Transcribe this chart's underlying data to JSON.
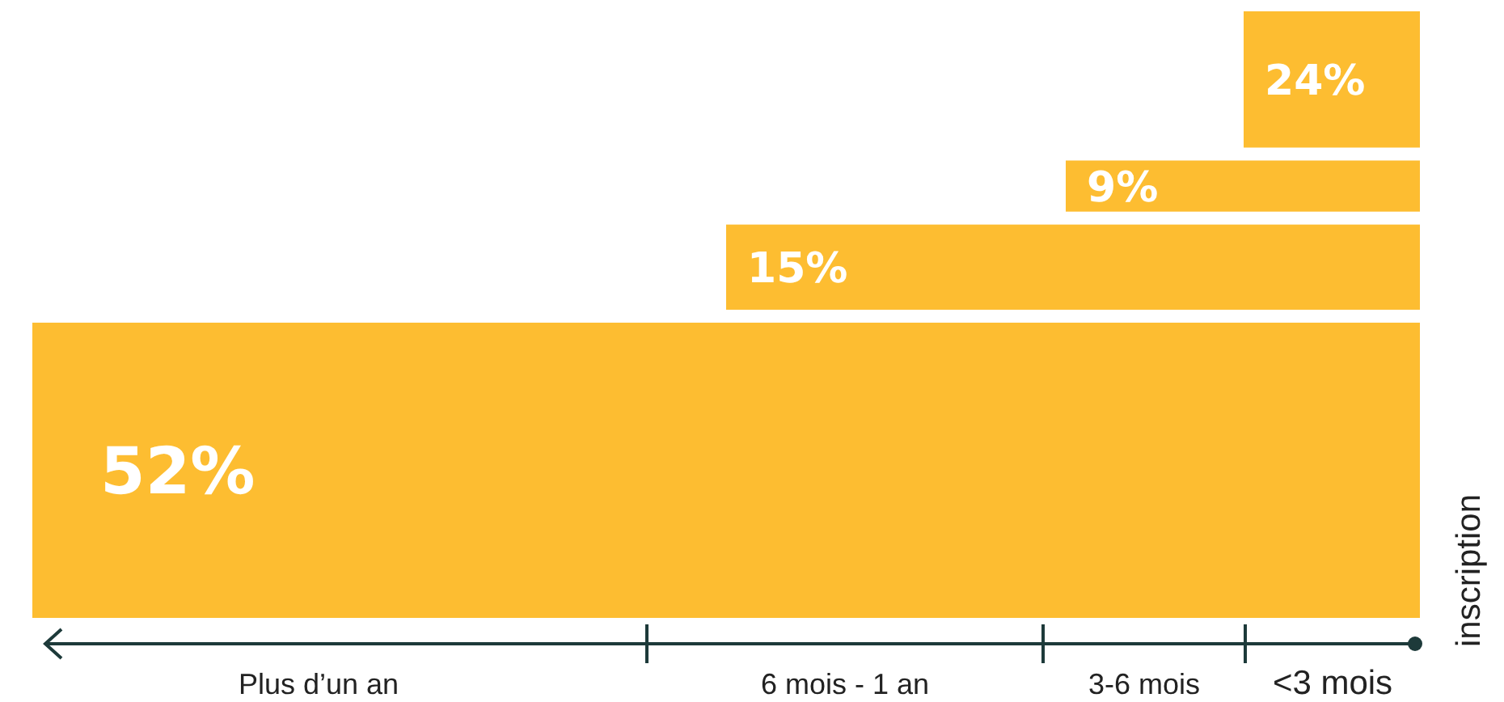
{
  "chart_data": {
    "type": "other",
    "categories": [
      "Plus d’un an",
      "6 mois - 1 an",
      "3-6 mois",
      "<3 mois"
    ],
    "values": [
      52,
      15,
      9,
      24
    ],
    "value_labels": [
      "52%",
      "15%",
      "9%",
      "24%"
    ],
    "color": "#fdbd31",
    "xlabel": "inscription"
  }
}
